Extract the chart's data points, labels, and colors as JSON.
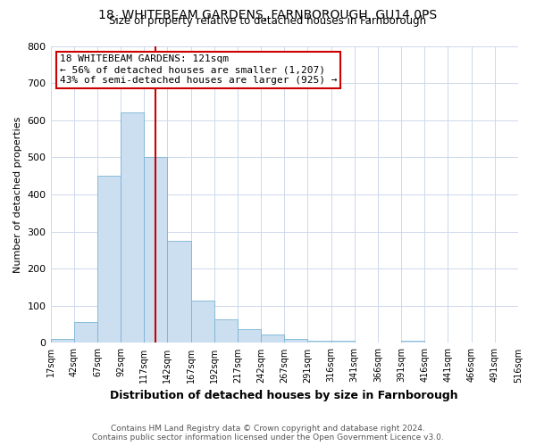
{
  "title": "18, WHITEBEAM GARDENS, FARNBOROUGH, GU14 0PS",
  "subtitle": "Size of property relative to detached houses in Farnborough",
  "xlabel": "Distribution of detached houses by size in Farnborough",
  "ylabel": "Number of detached properties",
  "bar_heights": [
    10,
    57,
    450,
    620,
    500,
    275,
    115,
    63,
    37,
    22,
    10,
    7,
    6,
    0,
    0,
    6,
    0,
    0,
    0,
    0
  ],
  "bin_labels": [
    "17sqm",
    "42sqm",
    "67sqm",
    "92sqm",
    "117sqm",
    "142sqm",
    "167sqm",
    "192sqm",
    "217sqm",
    "242sqm",
    "267sqm",
    "291sqm",
    "316sqm",
    "341sqm",
    "366sqm",
    "391sqm",
    "416sqm",
    "441sqm",
    "466sqm",
    "491sqm",
    "516sqm"
  ],
  "bar_color": "#ccdff0",
  "bar_edge_color": "#7ab4d4",
  "red_line_x": 4.5,
  "red_line_color": "#cc0000",
  "annotation_title": "18 WHITEBEAM GARDENS: 121sqm",
  "annotation_line1": "← 56% of detached houses are smaller (1,207)",
  "annotation_line2": "43% of semi-detached houses are larger (925) →",
  "footnote1": "Contains HM Land Registry data © Crown copyright and database right 2024.",
  "footnote2": "Contains public sector information licensed under the Open Government Licence v3.0.",
  "ylim": [
    0,
    800
  ],
  "yticks": [
    0,
    100,
    200,
    300,
    400,
    500,
    600,
    700,
    800
  ],
  "background_color": "#ffffff",
  "grid_color": "#cdd8ea"
}
